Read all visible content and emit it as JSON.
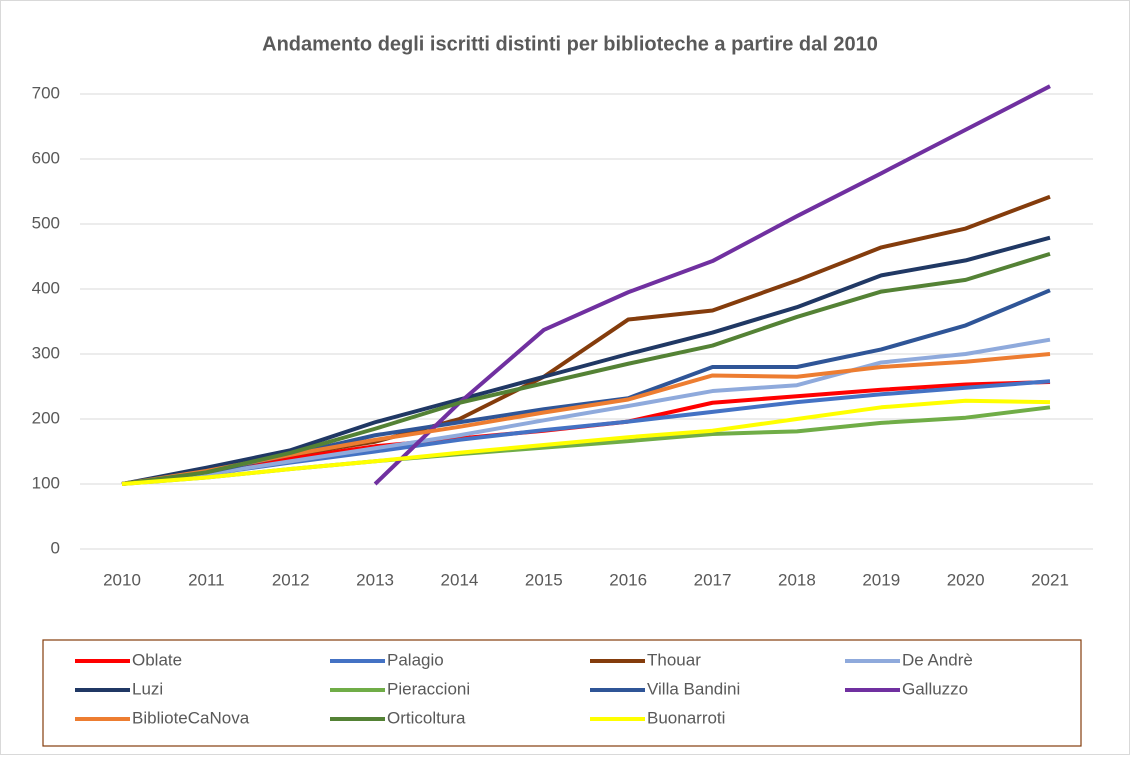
{
  "chart_data": {
    "type": "line",
    "title": "Andamento degli iscritti distinti per biblioteche a partire dal 2010",
    "categories": [
      "2010",
      "2011",
      "2012",
      "2013",
      "2014",
      "2015",
      "2016",
      "2017",
      "2018",
      "2019",
      "2020",
      "2021"
    ],
    "ylim": [
      0,
      700
    ],
    "yticks": [
      0,
      100,
      200,
      300,
      400,
      500,
      600,
      700
    ],
    "grid": true,
    "legend": "bottom",
    "series": [
      {
        "name": "Oblate",
        "color": "#ff0000",
        "values": [
          100,
          120,
          140,
          158,
          170,
          182,
          196,
          225,
          235,
          245,
          253,
          257
        ]
      },
      {
        "name": "Palagio",
        "color": "#4472c4",
        "values": [
          100,
          115,
          133,
          150,
          168,
          183,
          196,
          211,
          226,
          238,
          248,
          258
        ]
      },
      {
        "name": "Thouar",
        "color": "#843c0c",
        "values": [
          100,
          122,
          145,
          165,
          200,
          265,
          353,
          367,
          413,
          464,
          493,
          542
        ]
      },
      {
        "name": "De Andrè",
        "color": "#8faadc",
        "values": [
          100,
          115,
          135,
          155,
          175,
          198,
          220,
          243,
          252,
          287,
          300,
          322
        ]
      },
      {
        "name": "Luzi",
        "color": "#203864",
        "values": [
          100,
          125,
          152,
          195,
          230,
          265,
          300,
          333,
          372,
          421,
          444,
          479
        ]
      },
      {
        "name": "Pieraccioni",
        "color": "#70ad47",
        "values": [
          100,
          110,
          123,
          135,
          146,
          156,
          166,
          177,
          181,
          194,
          202,
          218
        ]
      },
      {
        "name": "Villa Bandini",
        "color": "#2f5597",
        "values": [
          100,
          118,
          145,
          175,
          195,
          215,
          232,
          280,
          280,
          307,
          344,
          398
        ]
      },
      {
        "name": "Galluzzo",
        "color": "#7030a0",
        "values": [
          null,
          null,
          null,
          100,
          225,
          337,
          395,
          443,
          512,
          578,
          645,
          712
        ]
      },
      {
        "name": "BiblioteCaNova",
        "color": "#ed7d31",
        "values": [
          100,
          120,
          145,
          168,
          188,
          210,
          230,
          267,
          265,
          280,
          288,
          300
        ]
      },
      {
        "name": "Orticoltura",
        "color": "#548235",
        "values": [
          100,
          118,
          148,
          185,
          225,
          255,
          285,
          313,
          357,
          396,
          414,
          454
        ]
      },
      {
        "name": "Buonarroti",
        "color": "#ffff00",
        "values": [
          100,
          110,
          123,
          135,
          148,
          160,
          172,
          182,
          200,
          218,
          228,
          226
        ]
      }
    ]
  }
}
